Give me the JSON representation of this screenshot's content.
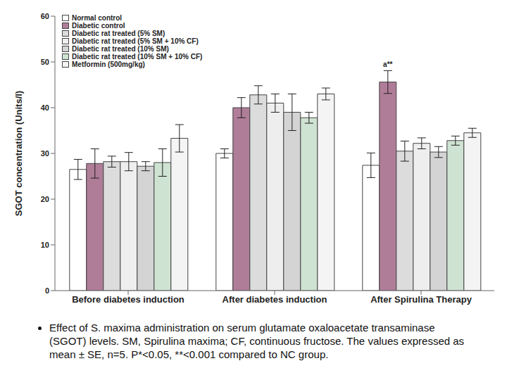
{
  "chart_data": {
    "type": "bar",
    "y_label": "SGOT concentration (Units/l)",
    "categories": [
      "Before diabetes induction",
      "After diabetes induction",
      "After Spirulina Therapy"
    ],
    "series": [
      {
        "name": "Normal control",
        "color": "#ffffff",
        "values": [
          26.5,
          30.0,
          27.4
        ],
        "errors": [
          2.2,
          1.0,
          2.7
        ]
      },
      {
        "name": "Diabetic control",
        "color": "#b07d99",
        "values": [
          27.8,
          40.0,
          45.6
        ],
        "errors": [
          3.2,
          2.2,
          2.5
        ]
      },
      {
        "name": "Diabetic rat treated (5% SM)",
        "color": "#dcdcdc",
        "values": [
          28.2,
          42.8,
          30.5
        ],
        "errors": [
          1.2,
          2.0,
          2.2
        ]
      },
      {
        "name": "Diabetic rat treated  (5% SM + 10% CF)",
        "color": "#eeeeee",
        "values": [
          28.2,
          41.0,
          32.2
        ],
        "errors": [
          2.0,
          2.0,
          1.2
        ]
      },
      {
        "name": "Diabetic rat treated (10% SM)",
        "color": "#d4d4d4",
        "values": [
          27.2,
          39.0,
          30.3
        ],
        "errors": [
          1.0,
          4.0,
          1.2
        ]
      },
      {
        "name": "Diabetic rat treated (10% SM + 10% CF)",
        "color": "#cfe3d2",
        "values": [
          28.0,
          37.8,
          32.8
        ],
        "errors": [
          3.0,
          1.2,
          1.0
        ]
      },
      {
        "name": "Metformin (500mg/kg)",
        "color": "#f4f4f4",
        "values": [
          33.3,
          43.0,
          34.5
        ],
        "errors": [
          3.0,
          1.3,
          1.0
        ]
      }
    ],
    "ylim": [
      0,
      60
    ],
    "yticks": [
      0,
      10,
      20,
      30,
      40,
      50,
      60
    ],
    "legend": "upper left",
    "annotations": [
      {
        "text": "a**",
        "category": "After Spirulina Therapy",
        "series": "Diabetic control"
      }
    ],
    "caption": "Effect of S. maxima administration on serum glutamate oxaloacetate transaminase (SGOT) levels. SM, Spirulina maxima; CF, continuous fructose. The values expressed as mean ± SE, n=5. P*<0.05, **<0.001 compared to NC group."
  }
}
